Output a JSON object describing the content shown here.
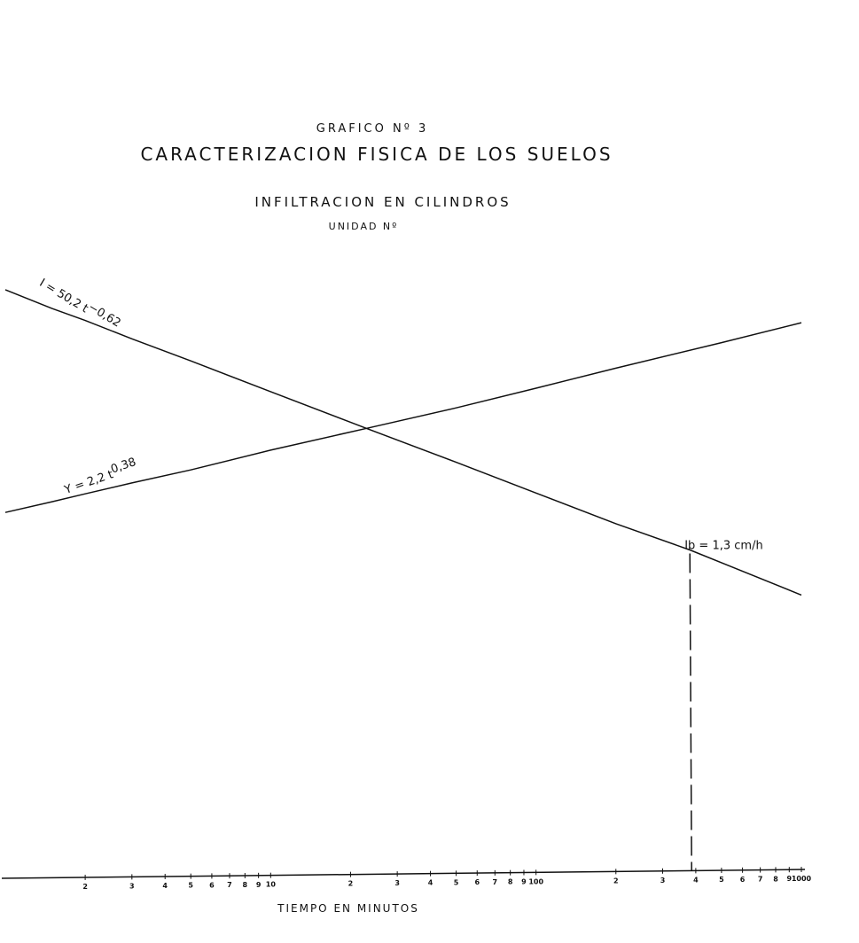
{
  "chart_data": {
    "type": "line",
    "supertitle": "GRAFICO Nº 3",
    "title": "CARACTERIZACION FISICA DE LOS SUELOS",
    "subtitle": "INFILTRACION EN CILINDROS",
    "unit_label": "UNIDAD Nº",
    "xlabel": "TIEMPO EN MINUTOS",
    "x_scale": "log",
    "xlim": [
      1,
      1000
    ],
    "grid": false,
    "x_ticks": [
      {
        "value": 2,
        "label": "2"
      },
      {
        "value": 3,
        "label": "3"
      },
      {
        "value": 4,
        "label": "4"
      },
      {
        "value": 5,
        "label": "5"
      },
      {
        "value": 6,
        "label": "6"
      },
      {
        "value": 7,
        "label": "7"
      },
      {
        "value": 8,
        "label": "8"
      },
      {
        "value": 9,
        "label": "9"
      },
      {
        "value": 10,
        "label": "10"
      },
      {
        "value": 20,
        "label": "2"
      },
      {
        "value": 30,
        "label": "3"
      },
      {
        "value": 40,
        "label": "4"
      },
      {
        "value": 50,
        "label": "5"
      },
      {
        "value": 60,
        "label": "6"
      },
      {
        "value": 70,
        "label": "7"
      },
      {
        "value": 80,
        "label": "8"
      },
      {
        "value": 90,
        "label": "9"
      },
      {
        "value": 100,
        "label": "100"
      },
      {
        "value": 200,
        "label": "2"
      },
      {
        "value": 300,
        "label": "3"
      },
      {
        "value": 400,
        "label": "4"
      },
      {
        "value": 500,
        "label": "5"
      },
      {
        "value": 600,
        "label": "6"
      },
      {
        "value": 700,
        "label": "7"
      },
      {
        "value": 800,
        "label": "8"
      },
      {
        "value": 900,
        "label": "9"
      },
      {
        "value": 1000,
        "label": "1000"
      }
    ],
    "series": [
      {
        "equation": "I = 50,2 t^-0,62",
        "label_text": "I = 50,2 t",
        "label_exp": "−0,62",
        "x": [
          1,
          1.5,
          2,
          3,
          5,
          10,
          20,
          23,
          50,
          100,
          200,
          380,
          1000
        ],
        "values": [
          50.2,
          38.6,
          32.6,
          25.2,
          18.5,
          12.0,
          7.81,
          7.16,
          4.45,
          2.89,
          1.88,
          1.3,
          0.69
        ]
      },
      {
        "equation": "Y = 2,2 t^0,38",
        "label_text": "Y = 2,2 t",
        "label_exp": "0,38",
        "x": [
          1,
          1.5,
          2,
          3,
          5,
          10,
          23,
          50,
          100,
          200,
          500,
          1000
        ],
        "values": [
          2.2,
          2.56,
          2.86,
          3.33,
          4.0,
          5.28,
          7.17,
          9.56,
          12.6,
          16.7,
          23.9,
          31.6
        ]
      }
    ],
    "annotations": [
      {
        "text": "Ib = 1,3 cm/h",
        "x": 380,
        "y": 1.3
      }
    ]
  }
}
